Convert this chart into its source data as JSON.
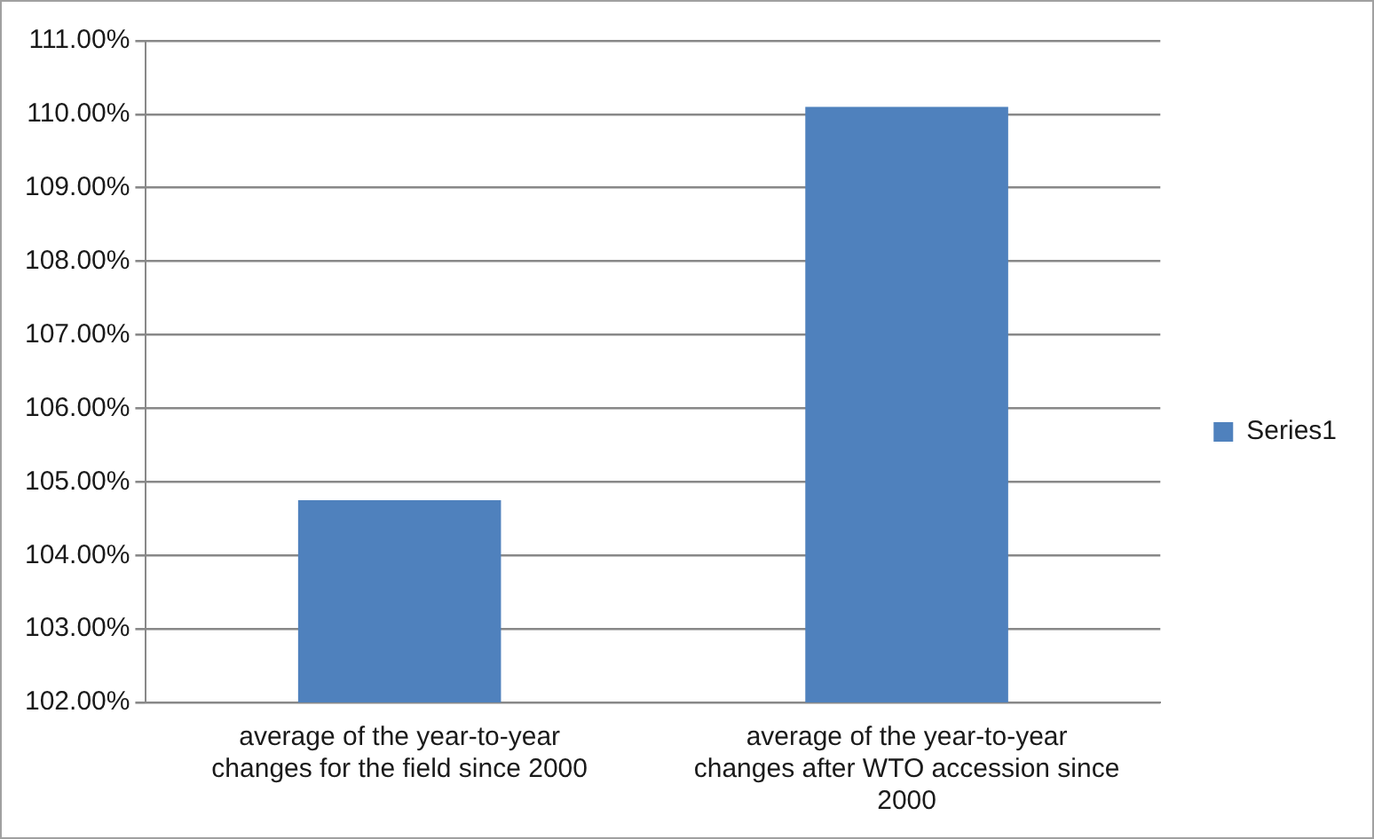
{
  "chart_data": {
    "type": "bar",
    "categories": [
      "average of the year-to-year changes for the field since 2000",
      "average of the year-to-year changes after WTO accession since 2000"
    ],
    "series": [
      {
        "name": "Series1",
        "color": "#4f81bd",
        "values": [
          104.75,
          110.1
        ]
      }
    ],
    "ylim": [
      102,
      111
    ],
    "yticks": [
      {
        "value": 102,
        "label": "102.00%"
      },
      {
        "value": 103,
        "label": "103.00%"
      },
      {
        "value": 104,
        "label": "104.00%"
      },
      {
        "value": 105,
        "label": "105.00%"
      },
      {
        "value": 106,
        "label": "106.00%"
      },
      {
        "value": 107,
        "label": "107.00%"
      },
      {
        "value": 108,
        "label": "108.00%"
      },
      {
        "value": 109,
        "label": "109.00%"
      },
      {
        "value": 110,
        "label": "110.00%"
      },
      {
        "value": 111,
        "label": "111.00%"
      }
    ],
    "grid": "y",
    "legend": "right"
  }
}
